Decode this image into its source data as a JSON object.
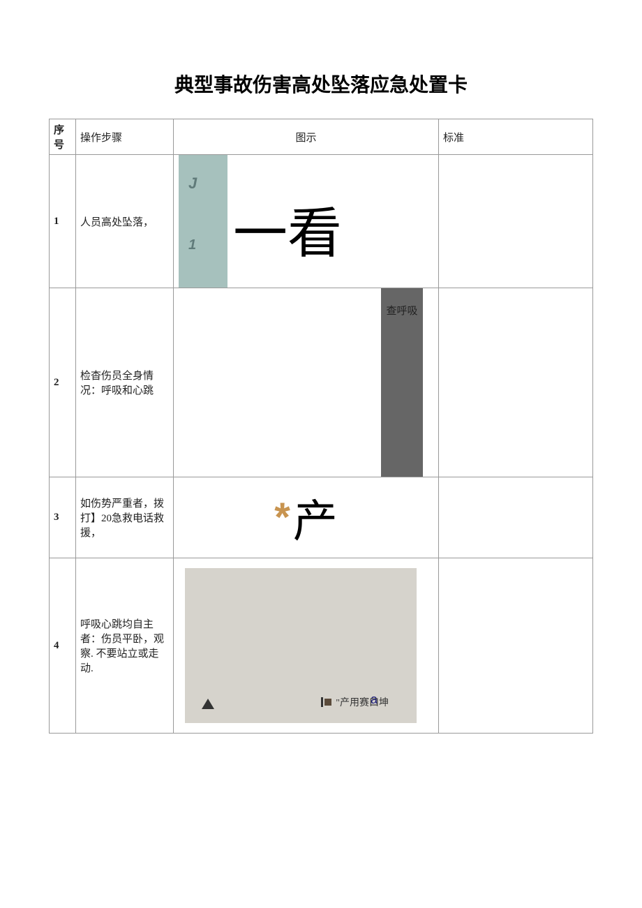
{
  "title": "典型事故伤害高处坠落应急处置卡",
  "headers": {
    "num": "序号",
    "step": "操作步骤",
    "img": "图示",
    "std": "标准"
  },
  "rows": [
    {
      "num": "1",
      "step": "人员高处坠落，",
      "std": "",
      "figure": {
        "bar_color": "#a6c1bd",
        "label_j": "J",
        "label_1": "1",
        "label_color": "#607b7a",
        "main_text": "一看",
        "main_fontsize": 78,
        "main_font": "KaiTi"
      }
    },
    {
      "num": "2",
      "step": "检杳伤员全身情况：呼吸和心跳",
      "std": "",
      "figure": {
        "bar_color": "#666666",
        "bar_text": "查呼吸"
      }
    },
    {
      "num": "3",
      "step": "如伤势严重者，拨打】20急救电话救援，",
      "std": "",
      "figure": {
        "asterisk": "*",
        "asterisk_color": "#c89450",
        "main_text": "产",
        "main_fontsize": 64,
        "main_font": "KaiTi"
      }
    },
    {
      "num": "4",
      "step": "呼吸心跳均自主者：伤员平卧，观察. 不要站立或走动.",
      "std": "",
      "figure": {
        "box_color": "#d6d3cc",
        "a_label": "a",
        "a_color": "#1a1a7a",
        "triangle_color": "#333333",
        "caption_square_color": "#5a4a3a",
        "caption_text": "\"产用赛口坤"
      }
    }
  ],
  "colors": {
    "border": "#999999",
    "text": "#222222",
    "background": "#ffffff"
  }
}
